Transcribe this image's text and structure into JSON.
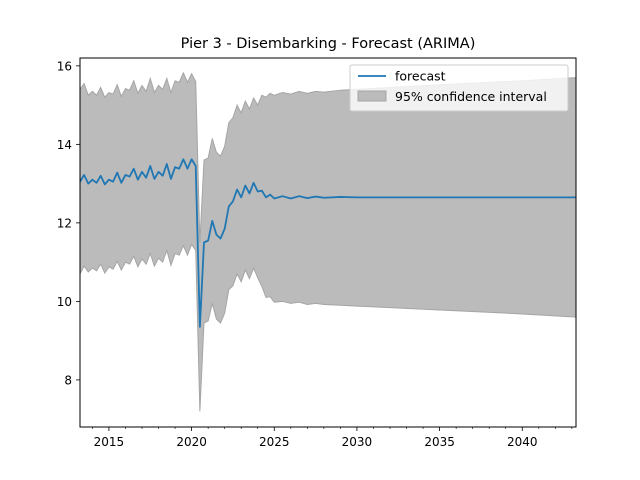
{
  "chart_data": {
    "type": "line",
    "title": "Pier 3 - Disembarking - Forecast (ARIMA)",
    "xlabel": "",
    "ylabel": "",
    "xlim": [
      2013.25,
      2043.25
    ],
    "ylim": [
      6.8,
      16.2
    ],
    "x_ticks": [
      2015,
      2020,
      2025,
      2030,
      2035,
      2040
    ],
    "y_ticks": [
      8,
      10,
      12,
      14,
      16
    ],
    "legend_placement": "top-right",
    "grid": false,
    "colors": {
      "forecast": "#1f77b4",
      "ci_fill": "#bbbbbb",
      "ci_edge": "#a5a5a5"
    },
    "series": [
      {
        "name": "forecast",
        "x": [
          2013.25,
          2013.5,
          2013.75,
          2014.0,
          2014.25,
          2014.5,
          2014.75,
          2015.0,
          2015.25,
          2015.5,
          2015.75,
          2016.0,
          2016.25,
          2016.5,
          2016.75,
          2017.0,
          2017.25,
          2017.5,
          2017.75,
          2018.0,
          2018.25,
          2018.5,
          2018.75,
          2019.0,
          2019.25,
          2019.5,
          2019.75,
          2020.0,
          2020.25,
          2020.5,
          2020.75,
          2021.0,
          2021.25,
          2021.5,
          2021.75,
          2022.0,
          2022.25,
          2022.5,
          2022.75,
          2023.0,
          2023.25,
          2023.5,
          2023.75,
          2024.0,
          2024.25,
          2024.5,
          2024.75,
          2025.0,
          2025.5,
          2026.0,
          2026.5,
          2027.0,
          2027.5,
          2028.0,
          2029.0,
          2030.0,
          2032.0,
          2035.0,
          2040.0,
          2043.25
        ],
        "values": [
          13.05,
          13.22,
          13.0,
          13.1,
          13.02,
          13.2,
          12.98,
          13.1,
          13.05,
          13.28,
          13.02,
          13.22,
          13.18,
          13.38,
          13.1,
          13.3,
          13.15,
          13.45,
          13.12,
          13.3,
          13.2,
          13.5,
          13.12,
          13.42,
          13.38,
          13.62,
          13.38,
          13.62,
          13.45,
          9.35,
          11.5,
          11.55,
          12.05,
          11.7,
          11.6,
          11.85,
          12.42,
          12.55,
          12.85,
          12.65,
          12.95,
          12.75,
          13.02,
          12.8,
          12.82,
          12.65,
          12.72,
          12.62,
          12.68,
          12.62,
          12.68,
          12.63,
          12.67,
          12.64,
          12.66,
          12.65,
          12.65,
          12.65,
          12.65,
          12.65
        ]
      }
    ],
    "confidence_interval": {
      "name": "95% confidence interval",
      "x": [
        2013.25,
        2013.5,
        2013.75,
        2014.0,
        2014.25,
        2014.5,
        2014.75,
        2015.0,
        2015.25,
        2015.5,
        2015.75,
        2016.0,
        2016.25,
        2016.5,
        2016.75,
        2017.0,
        2017.25,
        2017.5,
        2017.75,
        2018.0,
        2018.25,
        2018.5,
        2018.75,
        2019.0,
        2019.25,
        2019.5,
        2019.75,
        2020.0,
        2020.25,
        2020.5,
        2020.75,
        2021.0,
        2021.25,
        2021.5,
        2021.75,
        2022.0,
        2022.25,
        2022.5,
        2022.75,
        2023.0,
        2023.25,
        2023.5,
        2023.75,
        2024.0,
        2024.25,
        2024.5,
        2024.75,
        2025.0,
        2025.5,
        2026.0,
        2026.5,
        2027.0,
        2027.5,
        2028.0,
        2029.0,
        2030.0,
        2032.0,
        2035.0,
        2040.0,
        2043.25
      ],
      "lower": [
        10.7,
        10.9,
        10.75,
        10.85,
        10.78,
        10.95,
        10.72,
        10.88,
        10.82,
        11.02,
        10.8,
        11.0,
        10.95,
        11.15,
        10.88,
        11.08,
        10.95,
        11.22,
        10.9,
        11.1,
        11.0,
        11.3,
        10.92,
        11.22,
        11.18,
        11.42,
        11.18,
        11.45,
        11.3,
        7.2,
        9.45,
        9.5,
        9.95,
        9.55,
        9.45,
        9.7,
        10.3,
        10.4,
        10.7,
        10.5,
        10.8,
        10.58,
        10.85,
        10.6,
        10.38,
        10.1,
        10.12,
        9.98,
        10.0,
        9.95,
        9.98,
        9.92,
        9.95,
        9.92,
        9.9,
        9.88,
        9.84,
        9.78,
        9.68,
        9.6
      ],
      "upper": [
        15.4,
        15.55,
        15.25,
        15.35,
        15.25,
        15.45,
        15.2,
        15.32,
        15.28,
        15.52,
        15.22,
        15.42,
        15.38,
        15.62,
        15.3,
        15.5,
        15.35,
        15.68,
        15.32,
        15.5,
        15.4,
        15.68,
        15.32,
        15.62,
        15.58,
        15.82,
        15.58,
        15.8,
        15.6,
        11.5,
        13.6,
        13.65,
        14.15,
        13.8,
        13.7,
        13.95,
        14.55,
        14.68,
        15.0,
        14.8,
        15.1,
        14.9,
        15.18,
        15.0,
        15.25,
        15.2,
        15.3,
        15.25,
        15.32,
        15.28,
        15.35,
        15.3,
        15.35,
        15.33,
        15.38,
        15.4,
        15.45,
        15.52,
        15.62,
        15.7
      ]
    }
  }
}
